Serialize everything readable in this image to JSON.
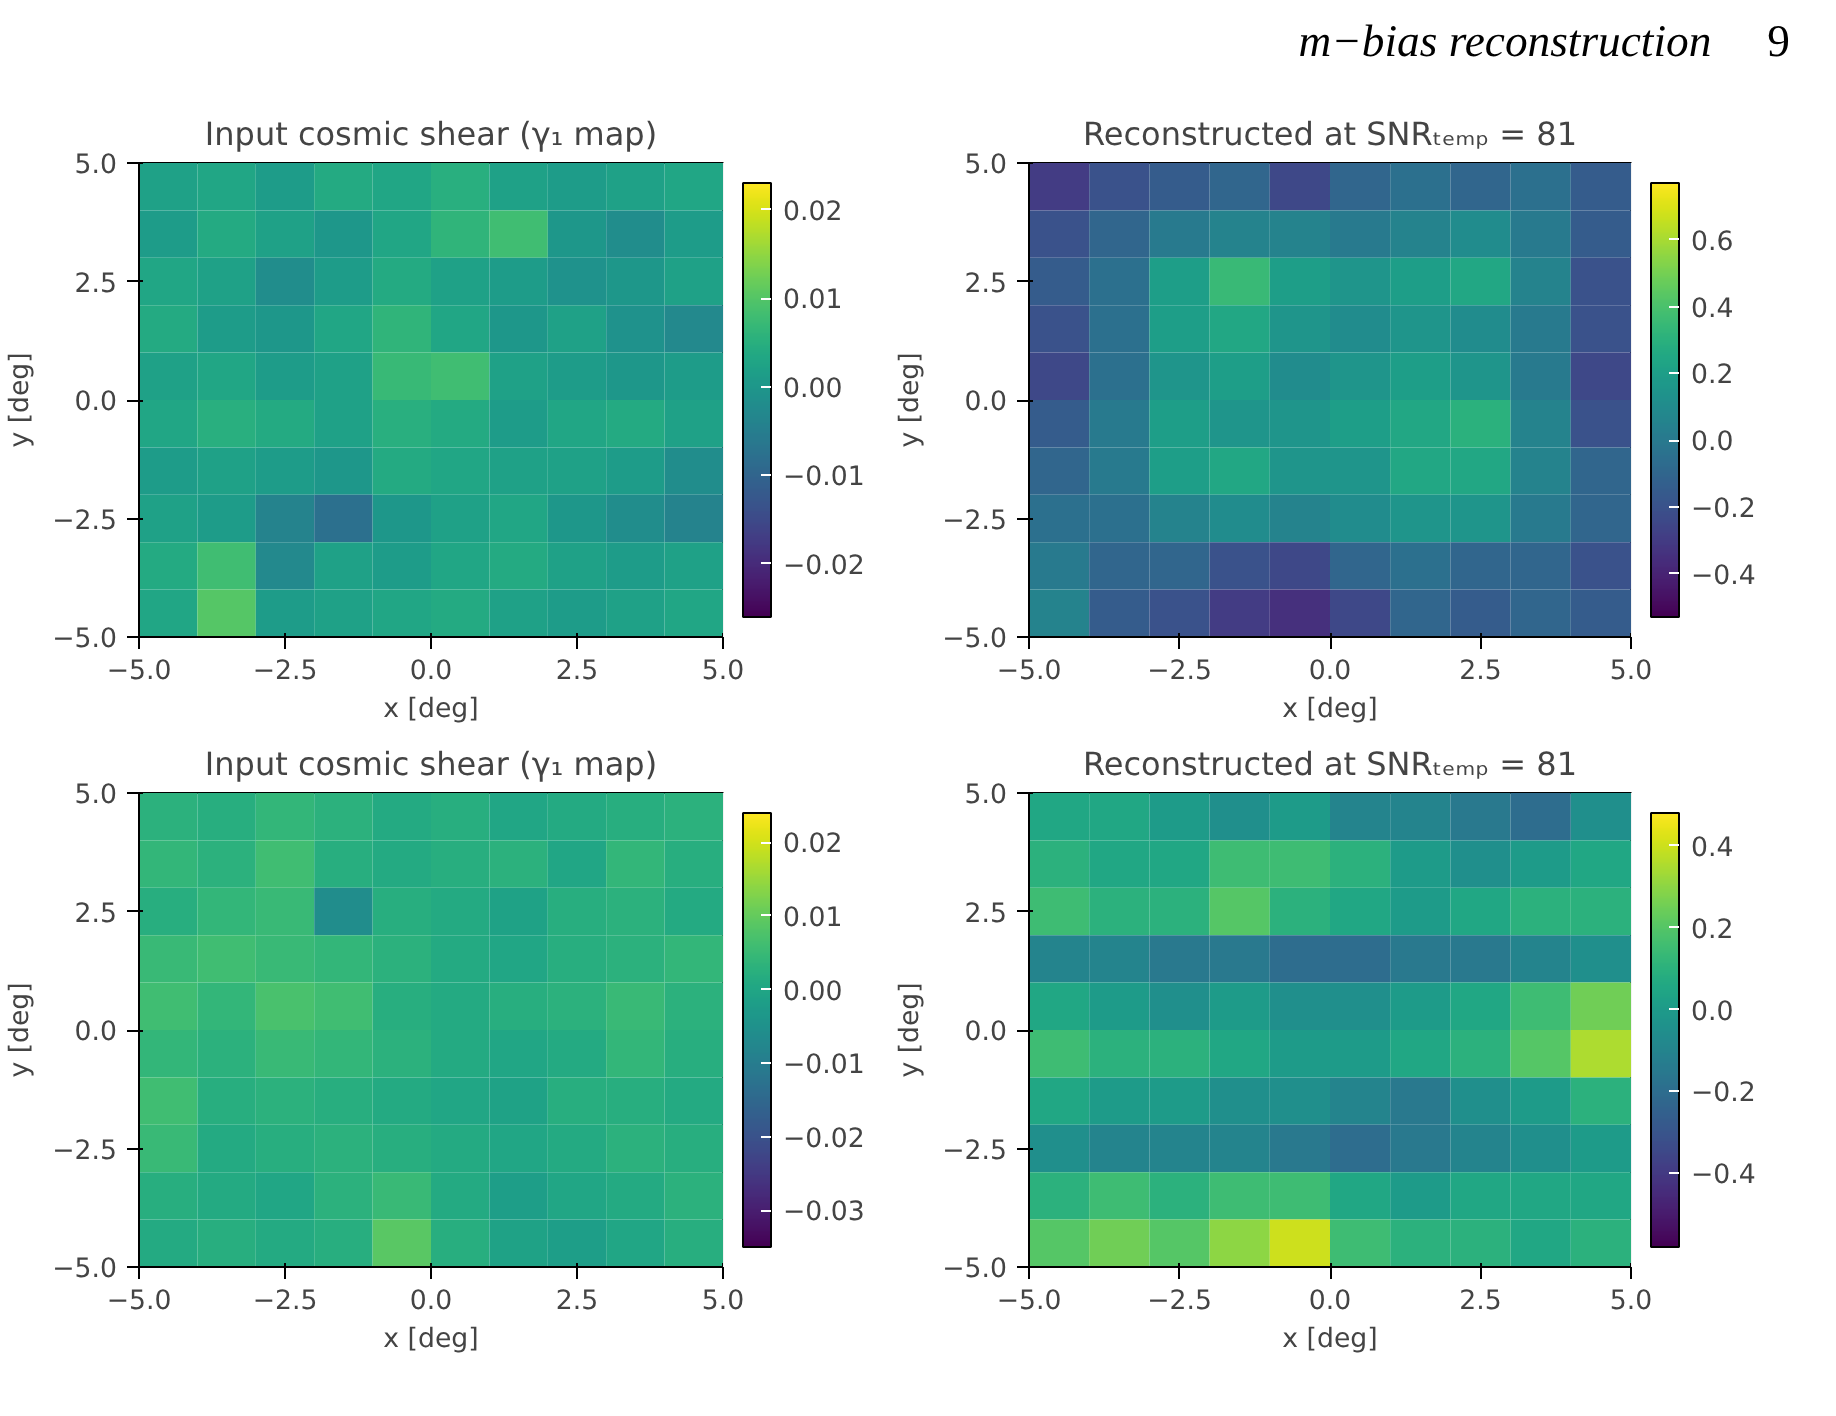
{
  "chart_data": [
    {
      "type": "heatmap",
      "title": "Input cosmic shear (γ₁ map)",
      "xlabel": "x [deg]",
      "ylabel": "y [deg]",
      "annotations": [
        "m−bias reconstruction",
        "9"
      ],
      "x": [
        -4.5,
        -3.5,
        -2.5,
        -1.5,
        -0.5,
        0.5,
        1.5,
        2.5,
        3.5,
        4.5
      ],
      "y": [
        4.5,
        3.5,
        2.5,
        1.5,
        0.5,
        -0.5,
        -1.5,
        -2.5,
        -3.5,
        -4.5
      ],
      "xlim": [
        -5,
        5
      ],
      "ylim": [
        -5,
        5
      ],
      "xticks": [
        {
          "value": -5,
          "label": "−5.0"
        },
        {
          "value": -2.5,
          "label": "−2.5"
        },
        {
          "value": 0,
          "label": "0.0"
        },
        {
          "value": 2.5,
          "label": "2.5"
        },
        {
          "value": 5,
          "label": "5.0"
        }
      ],
      "yticks": [
        {
          "value": -5,
          "label": "−5.0"
        },
        {
          "value": -2.5,
          "label": "−2.5"
        },
        {
          "value": 0,
          "label": "0.0"
        },
        {
          "value": 2.5,
          "label": "2.5"
        },
        {
          "value": 5,
          "label": "5.0"
        }
      ],
      "clim": [
        -0.026,
        0.023
      ],
      "cticks": [
        {
          "value": -0.02,
          "label": "−0.02"
        },
        {
          "value": -0.01,
          "label": "−0.01"
        },
        {
          "value": 0,
          "label": "0.00"
        },
        {
          "value": 0.01,
          "label": "0.01"
        },
        {
          "value": 0.02,
          "label": "0.02"
        }
      ],
      "cells": [
        [
          0.002,
          0.003,
          0.001,
          0.004,
          0.003,
          0.005,
          0.002,
          0.001,
          0.002,
          0.003
        ],
        [
          0.001,
          0.004,
          0.002,
          0.0,
          0.003,
          0.006,
          0.008,
          0.0,
          -0.002,
          0.001
        ],
        [
          0.003,
          0.002,
          -0.002,
          0.001,
          0.004,
          0.002,
          0.001,
          -0.001,
          0.0,
          0.002
        ],
        [
          0.004,
          0.001,
          0.0,
          0.003,
          0.006,
          0.003,
          0.0,
          0.002,
          -0.001,
          -0.003
        ],
        [
          0.002,
          0.003,
          0.001,
          0.002,
          0.007,
          0.008,
          0.002,
          0.001,
          0.0,
          0.001
        ],
        [
          0.003,
          0.005,
          0.004,
          0.002,
          0.005,
          0.004,
          0.001,
          0.003,
          0.004,
          0.002
        ],
        [
          0.001,
          0.002,
          0.001,
          0.0,
          0.004,
          0.003,
          0.002,
          0.002,
          0.001,
          -0.002
        ],
        [
          0.002,
          0.001,
          -0.004,
          -0.008,
          0.0,
          0.002,
          0.003,
          0.0,
          -0.002,
          -0.004
        ],
        [
          0.004,
          0.008,
          -0.003,
          0.002,
          0.001,
          0.003,
          0.004,
          0.002,
          0.001,
          0.002
        ],
        [
          0.003,
          0.01,
          0.001,
          0.002,
          0.003,
          0.004,
          0.002,
          0.001,
          0.002,
          0.003
        ]
      ]
    },
    {
      "type": "heatmap",
      "title": "Reconstructed at SNRₜₑₘₚ = 81",
      "xlabel": "x [deg]",
      "ylabel": "y [deg]",
      "x": [
        -4.5,
        -3.5,
        -2.5,
        -1.5,
        -0.5,
        0.5,
        1.5,
        2.5,
        3.5,
        4.5
      ],
      "y": [
        4.5,
        3.5,
        2.5,
        1.5,
        0.5,
        -0.5,
        -1.5,
        -2.5,
        -3.5,
        -4.5
      ],
      "xlim": [
        -5,
        5
      ],
      "ylim": [
        -5,
        5
      ],
      "xticks": [
        {
          "value": -5,
          "label": "−5.0"
        },
        {
          "value": -2.5,
          "label": "−2.5"
        },
        {
          "value": 0,
          "label": "0.0"
        },
        {
          "value": 2.5,
          "label": "2.5"
        },
        {
          "value": 5,
          "label": "5.0"
        }
      ],
      "yticks": [
        {
          "value": -5,
          "label": "−5.0"
        },
        {
          "value": -2.5,
          "label": "−2.5"
        },
        {
          "value": 0,
          "label": "0.0"
        },
        {
          "value": 2.5,
          "label": "2.5"
        },
        {
          "value": 5,
          "label": "5.0"
        }
      ],
      "clim": [
        -0.53,
        0.77
      ],
      "cticks": [
        {
          "value": -0.4,
          "label": "−0.4"
        },
        {
          "value": -0.2,
          "label": "−0.2"
        },
        {
          "value": 0,
          "label": "0.0"
        },
        {
          "value": 0.2,
          "label": "0.2"
        },
        {
          "value": 0.4,
          "label": "0.4"
        },
        {
          "value": 0.6,
          "label": "0.6"
        }
      ],
      "cells": [
        [
          -0.3,
          -0.2,
          -0.15,
          -0.1,
          -0.25,
          -0.1,
          -0.05,
          -0.1,
          -0.05,
          -0.15
        ],
        [
          -0.2,
          -0.1,
          0.0,
          0.05,
          0.05,
          0.0,
          0.05,
          0.1,
          0.0,
          -0.15
        ],
        [
          -0.15,
          -0.05,
          0.2,
          0.35,
          0.2,
          0.15,
          0.2,
          0.25,
          0.05,
          -0.2
        ],
        [
          -0.2,
          -0.05,
          0.2,
          0.25,
          0.15,
          0.1,
          0.15,
          0.1,
          0.0,
          -0.2
        ],
        [
          -0.25,
          -0.05,
          0.15,
          0.2,
          0.1,
          0.15,
          0.2,
          0.15,
          0.0,
          -0.25
        ],
        [
          -0.15,
          0.0,
          0.2,
          0.15,
          0.15,
          0.2,
          0.25,
          0.3,
          0.05,
          -0.2
        ],
        [
          -0.1,
          0.0,
          0.2,
          0.25,
          0.15,
          0.15,
          0.25,
          0.25,
          0.05,
          -0.1
        ],
        [
          -0.05,
          -0.05,
          0.05,
          0.1,
          0.05,
          0.1,
          0.15,
          0.15,
          0.0,
          -0.1
        ],
        [
          0.0,
          -0.1,
          -0.1,
          -0.2,
          -0.25,
          -0.1,
          -0.05,
          -0.1,
          -0.1,
          -0.2
        ],
        [
          0.05,
          -0.15,
          -0.2,
          -0.3,
          -0.35,
          -0.25,
          -0.1,
          -0.15,
          -0.1,
          -0.15
        ]
      ]
    },
    {
      "type": "heatmap",
      "title": "Input cosmic shear (γ₁ map)",
      "xlabel": "x [deg]",
      "ylabel": "y [deg]",
      "x": [
        -4.5,
        -3.5,
        -2.5,
        -1.5,
        -0.5,
        0.5,
        1.5,
        2.5,
        3.5,
        4.5
      ],
      "y": [
        4.5,
        3.5,
        2.5,
        1.5,
        0.5,
        -0.5,
        -1.5,
        -2.5,
        -3.5,
        -4.5
      ],
      "xlim": [
        -5,
        5
      ],
      "ylim": [
        -5,
        5
      ],
      "xticks": [
        {
          "value": -5,
          "label": "−5.0"
        },
        {
          "value": -2.5,
          "label": "−2.5"
        },
        {
          "value": 0,
          "label": "0.0"
        },
        {
          "value": 2.5,
          "label": "2.5"
        },
        {
          "value": 5,
          "label": "5.0"
        }
      ],
      "yticks": [
        {
          "value": -5,
          "label": "−5.0"
        },
        {
          "value": -2.5,
          "label": "−2.5"
        },
        {
          "value": 0,
          "label": "0.0"
        },
        {
          "value": 2.5,
          "label": "2.5"
        },
        {
          "value": 5,
          "label": "5.0"
        }
      ],
      "clim": [
        -0.035,
        0.024
      ],
      "cticks": [
        {
          "value": -0.03,
          "label": "−0.03"
        },
        {
          "value": -0.02,
          "label": "−0.02"
        },
        {
          "value": -0.01,
          "label": "−0.01"
        },
        {
          "value": 0,
          "label": "0.00"
        },
        {
          "value": 0.01,
          "label": "0.01"
        },
        {
          "value": 0.02,
          "label": "0.02"
        }
      ],
      "cells": [
        [
          0.003,
          0.002,
          0.004,
          0.003,
          0.001,
          0.002,
          0.0,
          0.001,
          0.002,
          0.003
        ],
        [
          0.004,
          0.003,
          0.006,
          0.002,
          0.001,
          0.002,
          0.003,
          0.0,
          0.004,
          0.002
        ],
        [
          0.002,
          0.004,
          0.005,
          -0.006,
          0.002,
          0.001,
          -0.001,
          0.002,
          0.003,
          0.001
        ],
        [
          0.005,
          0.006,
          0.005,
          0.004,
          0.003,
          0.001,
          0.0,
          0.002,
          0.003,
          0.004
        ],
        [
          0.006,
          0.004,
          0.007,
          0.006,
          0.002,
          0.001,
          0.002,
          0.003,
          0.005,
          0.003
        ],
        [
          0.004,
          0.003,
          0.005,
          0.004,
          0.003,
          0.001,
          0.0,
          0.001,
          0.004,
          0.002
        ],
        [
          0.006,
          0.002,
          0.003,
          0.002,
          0.001,
          0.0,
          -0.001,
          0.002,
          0.002,
          0.001
        ],
        [
          0.005,
          0.001,
          0.002,
          0.003,
          0.002,
          0.001,
          0.0,
          0.001,
          0.003,
          0.002
        ],
        [
          0.002,
          0.001,
          0.0,
          0.003,
          0.005,
          0.001,
          -0.002,
          0.0,
          0.001,
          0.003
        ],
        [
          0.001,
          0.002,
          0.001,
          0.002,
          0.009,
          0.002,
          -0.001,
          -0.002,
          0.0,
          0.002
        ]
      ]
    },
    {
      "type": "heatmap",
      "title": "Reconstructed at SNRₜₑₘₚ = 81",
      "xlabel": "x [deg]",
      "ylabel": "y [deg]",
      "x": [
        -4.5,
        -3.5,
        -2.5,
        -1.5,
        -0.5,
        0.5,
        1.5,
        2.5,
        3.5,
        4.5
      ],
      "y": [
        4.5,
        3.5,
        2.5,
        1.5,
        0.5,
        -0.5,
        -1.5,
        -2.5,
        -3.5,
        -4.5
      ],
      "xlim": [
        -5,
        5
      ],
      "ylim": [
        -5,
        5
      ],
      "xticks": [
        {
          "value": -5,
          "label": "−5.0"
        },
        {
          "value": -2.5,
          "label": "−2.5"
        },
        {
          "value": 0,
          "label": "0.0"
        },
        {
          "value": 2.5,
          "label": "2.5"
        },
        {
          "value": 5,
          "label": "5.0"
        }
      ],
      "yticks": [
        {
          "value": -5,
          "label": "−5.0"
        },
        {
          "value": -2.5,
          "label": "−2.5"
        },
        {
          "value": 0,
          "label": "0.0"
        },
        {
          "value": 2.5,
          "label": "2.5"
        },
        {
          "value": 5,
          "label": "5.0"
        }
      ],
      "clim": [
        -0.58,
        0.48
      ],
      "cticks": [
        {
          "value": -0.4,
          "label": "−0.4"
        },
        {
          "value": -0.2,
          "label": "−0.2"
        },
        {
          "value": 0,
          "label": "0.0"
        },
        {
          "value": 0.2,
          "label": "0.2"
        },
        {
          "value": 0.4,
          "label": "0.4"
        }
      ],
      "cells": [
        [
          0.05,
          0.05,
          0.0,
          -0.05,
          0.0,
          -0.1,
          -0.1,
          -0.15,
          -0.2,
          -0.05
        ],
        [
          0.1,
          0.05,
          0.05,
          0.15,
          0.15,
          0.1,
          0.0,
          -0.05,
          0.0,
          0.05
        ],
        [
          0.15,
          0.1,
          0.1,
          0.2,
          0.1,
          0.05,
          0.0,
          0.05,
          0.1,
          0.1
        ],
        [
          -0.1,
          -0.1,
          -0.15,
          -0.15,
          -0.2,
          -0.2,
          -0.15,
          -0.15,
          -0.1,
          -0.05
        ],
        [
          0.05,
          0.0,
          -0.05,
          0.0,
          -0.05,
          -0.05,
          0.0,
          0.05,
          0.15,
          0.25
        ],
        [
          0.15,
          0.1,
          0.1,
          0.05,
          0.0,
          0.0,
          0.05,
          0.1,
          0.2,
          0.35
        ],
        [
          0.05,
          0.0,
          0.0,
          -0.05,
          -0.05,
          -0.1,
          -0.15,
          -0.05,
          0.0,
          0.1
        ],
        [
          -0.05,
          -0.1,
          -0.1,
          -0.1,
          -0.15,
          -0.2,
          -0.15,
          -0.1,
          -0.05,
          0.0
        ],
        [
          0.1,
          0.15,
          0.1,
          0.15,
          0.15,
          0.05,
          0.0,
          0.05,
          0.05,
          0.05
        ],
        [
          0.2,
          0.25,
          0.2,
          0.3,
          0.4,
          0.15,
          0.1,
          0.1,
          0.05,
          0.1
        ]
      ]
    }
  ]
}
